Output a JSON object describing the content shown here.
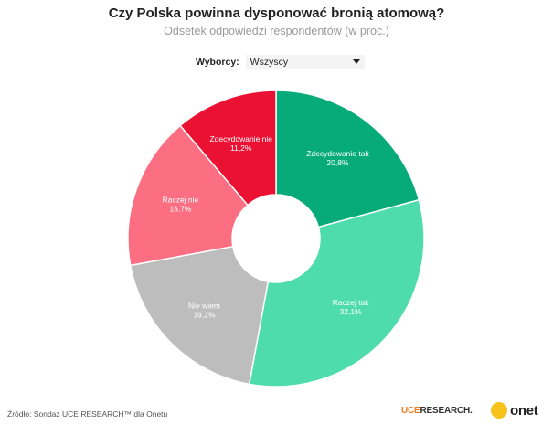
{
  "title": "Czy Polska powinna dysponować bronią atomową?",
  "subtitle": "Odsetek odpowiedzi respondentów (w proc.)",
  "filter": {
    "label": "Wyborcy:",
    "selected": "Wszyscy"
  },
  "footer": {
    "source": "Źródło: Sondaż UCE RESEARCH™ dla Onetu",
    "logo_uce": "UCE",
    "logo_research": "RESEARCH.",
    "logo_onet": "onet"
  },
  "chart_data": {
    "type": "pie",
    "donut": true,
    "slices": [
      {
        "label": "Zdecydowanie tak",
        "value_text": "20,8%",
        "value": 20.8,
        "color": "#07ab79",
        "text_color": "#ffffff"
      },
      {
        "label": "Raczej tak",
        "value_text": "32,1%",
        "value": 32.1,
        "color": "#4fdcad",
        "text_color": "#ffffff"
      },
      {
        "label": "Nie wiem",
        "value_text": "19,2%",
        "value": 19.2,
        "color": "#bdbdbd",
        "text_color": "#ffffff"
      },
      {
        "label": "Raczej nie",
        "value_text": "16,7%",
        "value": 16.7,
        "color": "#fc6f82",
        "text_color": "#ffffff"
      },
      {
        "label": "Zdecydowanie nie",
        "value_text": "11,2%",
        "value": 11.2,
        "color": "#ea1133",
        "text_color": "#ffffff"
      }
    ]
  }
}
